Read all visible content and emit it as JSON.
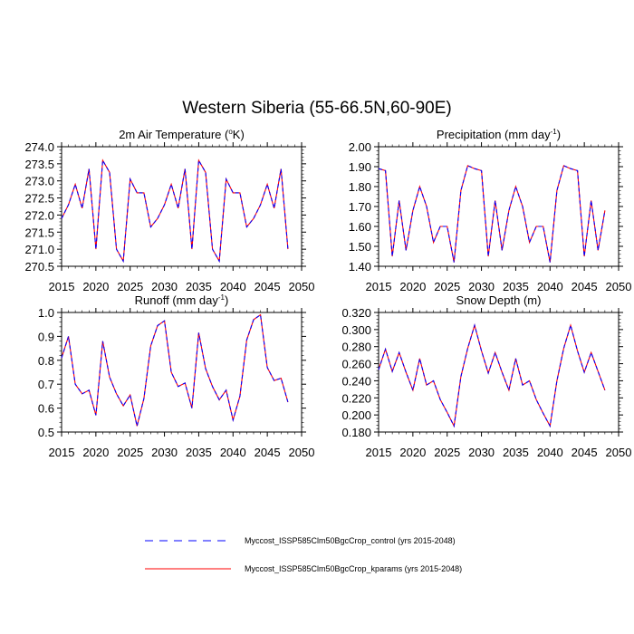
{
  "chart_data": [
    {
      "type": "line",
      "suptitle": "Western Siberia (55-66.5N,60-90E)",
      "title": "2m Air Temperature (",
      "title_sup": "o",
      "title_end": "K)",
      "xlim": [
        2015,
        2050
      ],
      "ylim": [
        270.5,
        274.0
      ],
      "xticks": [
        "2015",
        "2020",
        "2025",
        "2030",
        "2035",
        "2040",
        "2045",
        "2050"
      ],
      "yticks": [
        "270.5",
        "271.0",
        "271.5",
        "272.0",
        "272.5",
        "273.0",
        "273.5",
        "274.0"
      ],
      "x": [
        2015,
        2016,
        2017,
        2018,
        2019,
        2020,
        2021,
        2022,
        2023,
        2024,
        2025,
        2026,
        2027,
        2028,
        2029,
        2030,
        2031,
        2032,
        2033,
        2034,
        2035,
        2036,
        2037,
        2038,
        2039,
        2040,
        2041,
        2042,
        2043,
        2044,
        2045,
        2046,
        2047,
        2048
      ],
      "series": [
        {
          "name": "control",
          "values": [
            271.9,
            272.3,
            272.9,
            272.2,
            273.35,
            271.0,
            273.6,
            273.25,
            271.0,
            270.65,
            273.05,
            272.65,
            272.65,
            271.65,
            271.9,
            272.3,
            272.9,
            272.2,
            273.35,
            271.0,
            273.6,
            273.25,
            271.0,
            270.65,
            273.05,
            272.65,
            272.65,
            271.65,
            271.9,
            272.3,
            272.9,
            272.2,
            273.35,
            271.0
          ]
        },
        {
          "name": "kparams",
          "values": [
            271.9,
            272.3,
            272.9,
            272.2,
            273.35,
            271.0,
            273.6,
            273.25,
            271.0,
            270.65,
            273.05,
            272.65,
            272.65,
            271.65,
            271.9,
            272.3,
            272.9,
            272.2,
            273.35,
            271.0,
            273.6,
            273.25,
            271.0,
            270.65,
            273.05,
            272.65,
            272.65,
            271.65,
            271.9,
            272.3,
            272.9,
            272.2,
            273.35,
            271.0
          ]
        }
      ]
    },
    {
      "type": "line",
      "title": "Precipitation (mm day",
      "title_sup": "-1",
      "title_end": ")",
      "xlim": [
        2015,
        2050
      ],
      "ylim": [
        1.4,
        2.0
      ],
      "xticks": [
        "2015",
        "2020",
        "2025",
        "2030",
        "2035",
        "2040",
        "2045",
        "2050"
      ],
      "yticks": [
        "1.40",
        "1.50",
        "1.60",
        "1.70",
        "1.80",
        "1.90",
        "2.00"
      ],
      "x": [
        2015,
        2016,
        2017,
        2018,
        2019,
        2020,
        2021,
        2022,
        2023,
        2024,
        2025,
        2026,
        2027,
        2028,
        2029,
        2030,
        2031,
        2032,
        2033,
        2034,
        2035,
        2036,
        2037,
        2038,
        2039,
        2040,
        2041,
        2042,
        2043,
        2044,
        2045,
        2046,
        2047,
        2048
      ],
      "series": [
        {
          "name": "control",
          "values": [
            1.89,
            1.88,
            1.45,
            1.73,
            1.48,
            1.68,
            1.8,
            1.7,
            1.52,
            1.6,
            1.6,
            1.42,
            1.78,
            1.905,
            1.89,
            1.88,
            1.45,
            1.73,
            1.48,
            1.68,
            1.8,
            1.7,
            1.52,
            1.6,
            1.6,
            1.42,
            1.78,
            1.905,
            1.89,
            1.88,
            1.45,
            1.73,
            1.48,
            1.68
          ]
        },
        {
          "name": "kparams",
          "values": [
            1.89,
            1.88,
            1.45,
            1.73,
            1.48,
            1.68,
            1.8,
            1.7,
            1.52,
            1.6,
            1.6,
            1.42,
            1.78,
            1.905,
            1.89,
            1.88,
            1.45,
            1.73,
            1.48,
            1.68,
            1.8,
            1.7,
            1.52,
            1.6,
            1.6,
            1.42,
            1.78,
            1.905,
            1.89,
            1.88,
            1.45,
            1.73,
            1.48,
            1.68
          ]
        }
      ]
    },
    {
      "type": "line",
      "title": "Runoff (mm day",
      "title_sup": "-1",
      "title_end": ")",
      "xlim": [
        2015,
        2050
      ],
      "ylim": [
        0.5,
        1.0
      ],
      "xticks": [
        "2015",
        "2020",
        "2025",
        "2030",
        "2035",
        "2040",
        "2045",
        "2050"
      ],
      "yticks": [
        "0.5",
        "0.6",
        "0.7",
        "0.8",
        "0.9",
        "1.0"
      ],
      "x": [
        2015,
        2016,
        2017,
        2018,
        2019,
        2020,
        2021,
        2022,
        2023,
        2024,
        2025,
        2026,
        2027,
        2028,
        2029,
        2030,
        2031,
        2032,
        2033,
        2034,
        2035,
        2036,
        2037,
        2038,
        2039,
        2040,
        2041,
        2042,
        2043,
        2044,
        2045,
        2046,
        2047,
        2048
      ],
      "series": [
        {
          "name": "control",
          "values": [
            0.81,
            0.9,
            0.7,
            0.66,
            0.675,
            0.57,
            0.88,
            0.73,
            0.66,
            0.61,
            0.655,
            0.525,
            0.64,
            0.86,
            0.945,
            0.965,
            0.75,
            0.69,
            0.705,
            0.6,
            0.915,
            0.765,
            0.69,
            0.635,
            0.675,
            0.55,
            0.65,
            0.885,
            0.97,
            0.99,
            0.77,
            0.715,
            0.725,
            0.625
          ]
        },
        {
          "name": "kparams",
          "values": [
            0.81,
            0.9,
            0.7,
            0.66,
            0.675,
            0.57,
            0.88,
            0.73,
            0.66,
            0.61,
            0.655,
            0.525,
            0.64,
            0.86,
            0.945,
            0.965,
            0.75,
            0.69,
            0.705,
            0.6,
            0.915,
            0.765,
            0.69,
            0.635,
            0.675,
            0.55,
            0.65,
            0.885,
            0.97,
            0.99,
            0.77,
            0.715,
            0.725,
            0.625
          ]
        }
      ]
    },
    {
      "type": "line",
      "title": "Snow Depth (m)",
      "title_sup": "",
      "title_end": "",
      "xlim": [
        2015,
        2050
      ],
      "ylim": [
        0.18,
        0.32
      ],
      "xticks": [
        "2015",
        "2020",
        "2025",
        "2030",
        "2035",
        "2040",
        "2045",
        "2050"
      ],
      "yticks": [
        "0.180",
        "0.200",
        "0.220",
        "0.240",
        "0.260",
        "0.280",
        "0.300",
        "0.320"
      ],
      "x": [
        2015,
        2016,
        2017,
        2018,
        2019,
        2020,
        2021,
        2022,
        2023,
        2024,
        2025,
        2026,
        2027,
        2028,
        2029,
        2030,
        2031,
        2032,
        2033,
        2034,
        2035,
        2036,
        2037,
        2038,
        2039,
        2040,
        2041,
        2042,
        2043,
        2044,
        2045,
        2046,
        2047,
        2048
      ],
      "series": [
        {
          "name": "control",
          "values": [
            0.253,
            0.277,
            0.251,
            0.273,
            0.25,
            0.229,
            0.266,
            0.235,
            0.24,
            0.218,
            0.203,
            0.187,
            0.245,
            0.278,
            0.305,
            0.275,
            0.249,
            0.273,
            0.25,
            0.229,
            0.266,
            0.235,
            0.24,
            0.218,
            0.202,
            0.187,
            0.24,
            0.278,
            0.305,
            0.275,
            0.25,
            0.273,
            0.251,
            0.229
          ]
        },
        {
          "name": "kparams",
          "values": [
            0.253,
            0.277,
            0.251,
            0.273,
            0.25,
            0.229,
            0.266,
            0.235,
            0.24,
            0.218,
            0.203,
            0.187,
            0.245,
            0.278,
            0.305,
            0.275,
            0.249,
            0.273,
            0.25,
            0.229,
            0.266,
            0.235,
            0.24,
            0.218,
            0.202,
            0.187,
            0.24,
            0.278,
            0.305,
            0.275,
            0.25,
            0.273,
            0.251,
            0.229
          ]
        }
      ]
    }
  ],
  "legend": {
    "position": "bottom-center",
    "items": [
      {
        "label": "Myccost_ISSP585Clm50BgcCrop_control (yrs 2015-2048)",
        "color": "#0000ff",
        "style": "dashed"
      },
      {
        "label": "Myccost_ISSP585Clm50BgcCrop_kparams (yrs 2015-2048)",
        "color": "#ff0000",
        "style": "solid"
      }
    ]
  },
  "colors": {
    "control": "#0000ff",
    "kparams": "#ff0000"
  }
}
